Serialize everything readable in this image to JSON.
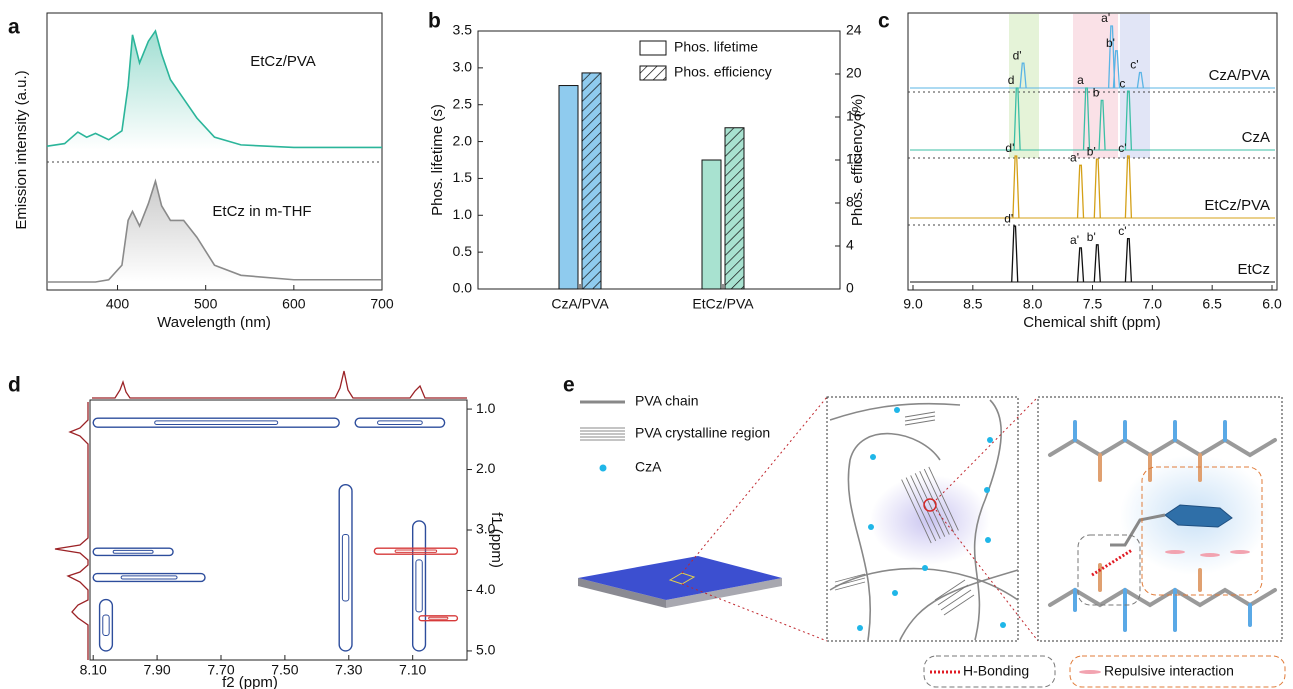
{
  "panel_labels": [
    "a",
    "b",
    "c",
    "d",
    "e"
  ],
  "chart_data": [
    {
      "type": "line",
      "xlabel": "Wavelength (nm)",
      "ylabel": "Emission intensity (a.u.)",
      "x": [
        320,
        340,
        355,
        365,
        375,
        390,
        405,
        412,
        417,
        425,
        435,
        443,
        450,
        460,
        475,
        490,
        510,
        540,
        600,
        700
      ],
      "xlim": [
        320,
        700
      ],
      "xticks": [
        400,
        500,
        600,
        700
      ],
      "ylim": [
        0,
        1
      ],
      "series": [
        {
          "name": "EtCz/PVA",
          "color": "#2bb59a",
          "values": [
            0.03,
            0.05,
            0.14,
            0.1,
            0.13,
            0.08,
            0.15,
            0.5,
            0.9,
            0.68,
            0.85,
            0.93,
            0.75,
            0.55,
            0.4,
            0.25,
            0.1,
            0.04,
            0.02,
            0.02
          ]
        },
        {
          "name": "EtCz in m-THF",
          "color": "#8a8a8a",
          "values": [
            0,
            0,
            0,
            0,
            0,
            0.02,
            0.15,
            0.55,
            0.63,
            0.5,
            0.7,
            0.9,
            0.68,
            0.55,
            0.55,
            0.4,
            0.15,
            0.06,
            0.02,
            0.02
          ]
        }
      ]
    },
    {
      "type": "bar",
      "categories": [
        "CzA/PVA",
        "EtCz/PVA"
      ],
      "colors": [
        "#8fcbee",
        "#a8e2d0"
      ],
      "ylabel": "Phos. lifetime (s)",
      "y2label": "Phos. efficiency (%)",
      "ylim": [
        0,
        3.5
      ],
      "yticks": [
        {
          "value": 0,
          "label": "0.0"
        },
        0.5,
        {
          "value": 1,
          "label": "1.0"
        },
        1.5,
        {
          "value": 2,
          "label": "2.0"
        },
        2.5,
        {
          "value": 3,
          "label": "3.0"
        },
        3.5
      ],
      "y2lim": [
        0,
        24
      ],
      "y2ticks": [
        0,
        4,
        8,
        12,
        16,
        20,
        24
      ],
      "legend": "upper right",
      "series": [
        {
          "name": "Phos. lifetime",
          "values": [
            2.76,
            1.75
          ]
        },
        {
          "name": "Phos. efficiency",
          "values": [
            20.1,
            15
          ],
          "axis": "y2",
          "hatch": true
        }
      ]
    },
    {
      "type": "nmr",
      "xlabel": "Chemical shift (ppm)",
      "xlim": [
        9,
        6
      ],
      "ylim": [
        0,
        1
      ],
      "xticks": [
        {
          "value": 9,
          "label": "9.0"
        },
        8.5,
        {
          "value": 8,
          "label": "8.0"
        },
        7.5,
        {
          "value": 7,
          "label": "7.0"
        },
        6.5,
        {
          "value": 6,
          "label": "6.0"
        }
      ],
      "series": [
        {
          "name": "CzA/PVA",
          "color": "#5ab4e5",
          "x": [
            8.08,
            7.34,
            7.3,
            7.1
          ],
          "values": [
            0.4,
            1,
            0.6,
            0.25
          ],
          "peak_labels": [
            "d'",
            "a'",
            "b'",
            "c'"
          ]
        },
        {
          "name": "CzA",
          "color": "#3bbfa5",
          "x": [
            8.13,
            7.55,
            7.42,
            7.2
          ],
          "values": [
            1,
            1,
            0.8,
            0.95
          ],
          "peak_labels": [
            "d",
            "a",
            "b",
            "c"
          ]
        },
        {
          "name": "EtCz/PVA",
          "color": "#d4a017",
          "x": [
            8.14,
            7.6,
            7.46,
            7.2
          ],
          "values": [
            1,
            0.85,
            0.95,
            1
          ],
          "peak_labels": [
            "d'",
            "a'",
            "b'",
            "c'"
          ]
        },
        {
          "name": "EtCz",
          "color": "#111111",
          "x": [
            8.15,
            7.6,
            7.46,
            7.2
          ],
          "values": [
            0.9,
            0.55,
            0.6,
            0.7
          ],
          "peak_labels": [
            "d'",
            "a'",
            "b'",
            "c'"
          ]
        }
      ]
    },
    {
      "type": "contour",
      "xlabel": "f2 (ppm)",
      "ylabel": "f1 (ppm)",
      "xlim": [
        8.11,
        6.93
      ],
      "xticks": [
        {
          "value": 8.1,
          "label": "8.10"
        },
        {
          "value": 7.9,
          "label": "7.90"
        },
        {
          "value": 7.7,
          "label": "7.70"
        },
        {
          "value": 7.5,
          "label": "7.50"
        },
        {
          "value": 7.3,
          "label": "7.30"
        },
        {
          "value": 7.1,
          "label": "7.10"
        }
      ],
      "ylim": [
        0.85,
        5.15
      ],
      "yticks": [
        {
          "value": 1,
          "label": "1.0"
        },
        {
          "value": 2,
          "label": "2.0"
        },
        {
          "value": 3,
          "label": "3.0"
        },
        {
          "value": 4,
          "label": "4.0"
        },
        {
          "value": 5,
          "label": "5.0"
        }
      ],
      "regions": [
        {
          "x": [
            8.1,
            7.33
          ],
          "y": [
            1.15,
            1.3
          ],
          "color": "#2d4d9c"
        },
        {
          "x": [
            7.28,
            7.0
          ],
          "y": [
            1.15,
            1.3
          ],
          "color": "#2d4d9c"
        },
        {
          "x": [
            8.1,
            7.85
          ],
          "y": [
            3.3,
            3.42
          ],
          "color": "#2d4d9c"
        },
        {
          "x": [
            8.1,
            7.75
          ],
          "y": [
            3.72,
            3.85
          ],
          "color": "#2d4d9c"
        },
        {
          "x": [
            7.33,
            7.29
          ],
          "y": [
            2.25,
            5
          ],
          "color": "#2d4d9c"
        },
        {
          "x": [
            7.1,
            7.06
          ],
          "y": [
            2.85,
            5
          ],
          "color": "#2d4d9c"
        },
        {
          "x": [
            8.08,
            8.04
          ],
          "y": [
            4.15,
            5
          ],
          "color": "#2d4d9c"
        },
        {
          "x": [
            7.22,
            6.96
          ],
          "y": [
            3.3,
            3.4
          ],
          "color": "#d63a3a"
        },
        {
          "x": [
            7.08,
            6.96
          ],
          "y": [
            4.42,
            4.5
          ],
          "color": "#d63a3a"
        }
      ]
    }
  ],
  "diagram": {
    "legend": [
      "PVA chain",
      "PVA crystalline region",
      "CzA"
    ],
    "interactions": [
      "H-Bonding",
      "Repulsive interaction"
    ]
  }
}
